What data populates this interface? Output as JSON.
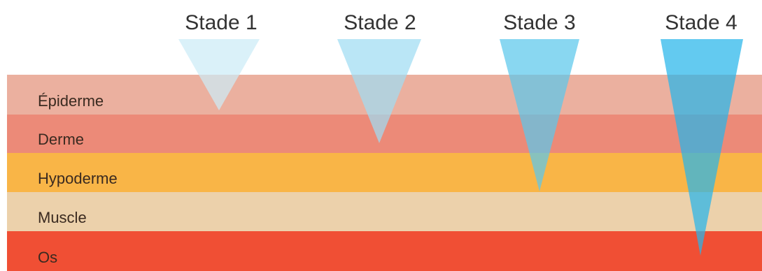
{
  "layers": [
    {
      "key": "epiderme",
      "label": "Épiderme",
      "color": "#ebb09f"
    },
    {
      "key": "derme",
      "label": "Derme",
      "color": "#ec8a78"
    },
    {
      "key": "hypoderme",
      "label": "Hypoderme",
      "color": "#f9b547"
    },
    {
      "key": "muscle",
      "label": "Muscle",
      "color": "#ecd1ab"
    },
    {
      "key": "os",
      "label": "Os",
      "color": "#f04f34"
    }
  ],
  "stages": [
    {
      "key": "stade-1",
      "label": "Stade 1",
      "depth_layer": "epiderme",
      "color": "#ccecf7"
    },
    {
      "key": "stade-2",
      "label": "Stade 2",
      "depth_layer": "derme",
      "color": "#9fdcf3"
    },
    {
      "key": "stade-3",
      "label": "Stade 3",
      "depth_layer": "hypoderme",
      "color": "#5bc8ec"
    },
    {
      "key": "stade-4",
      "label": "Stade 4",
      "depth_layer": "os",
      "color": "#27b6ea"
    }
  ]
}
